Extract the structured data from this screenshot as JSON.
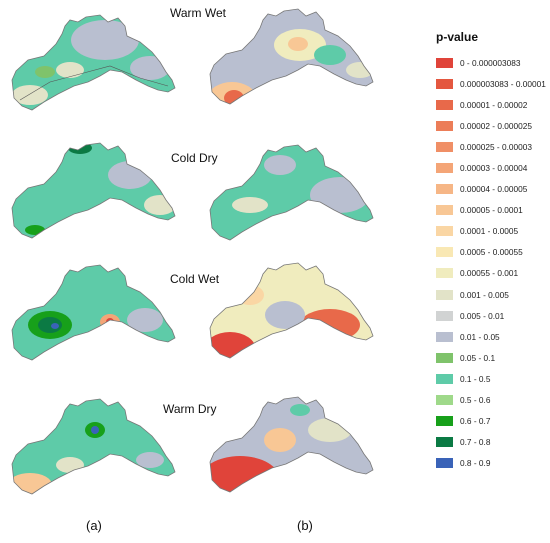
{
  "figure": {
    "row_titles": [
      "Warm Wet",
      "Cold Dry",
      "Cold Wet",
      "Warm Dry"
    ],
    "column_labels": [
      "(a)",
      "(b)"
    ]
  },
  "legend": {
    "title": "p-value",
    "items": [
      {
        "label": "0 - 0.000003083",
        "color": "#e0443a"
      },
      {
        "label": "0.000003083 - 0.00001",
        "color": "#e4573f"
      },
      {
        "label": "0.00001 - 0.00002",
        "color": "#e8694a"
      },
      {
        "label": "0.00002 - 0.000025",
        "color": "#ec7d58"
      },
      {
        "label": "0.000025 - 0.00003",
        "color": "#f08f66"
      },
      {
        "label": "0.00003 - 0.00004",
        "color": "#f4a577"
      },
      {
        "label": "0.00004 - 0.00005",
        "color": "#f6b686"
      },
      {
        "label": "0.00005 - 0.0001",
        "color": "#f8c795"
      },
      {
        "label": "0.0001 - 0.0005",
        "color": "#fad6a4"
      },
      {
        "label": "0.0005 - 0.00055",
        "color": "#f9e8b4"
      },
      {
        "label": "0.00055 - 0.001",
        "color": "#f0ecbe"
      },
      {
        "label": "0.001 - 0.005",
        "color": "#e2e3c8"
      },
      {
        "label": "0.005 - 0.01",
        "color": "#d1d3d3"
      },
      {
        "label": "0.01 - 0.05",
        "color": "#b9bfd0"
      },
      {
        "label": "0.05 - 0.1",
        "color": "#7fc36b"
      },
      {
        "label": "0.1 - 0.5",
        "color": "#5ecba8"
      },
      {
        "label": "0.5 - 0.6",
        "color": "#9fd98a"
      },
      {
        "label": "0.6 - 0.7",
        "color": "#17a01a"
      },
      {
        "label": "0.7 - 0.8",
        "color": "#0b7a44"
      },
      {
        "label": "0.8 - 0.9",
        "color": "#3a63b8"
      }
    ]
  }
}
